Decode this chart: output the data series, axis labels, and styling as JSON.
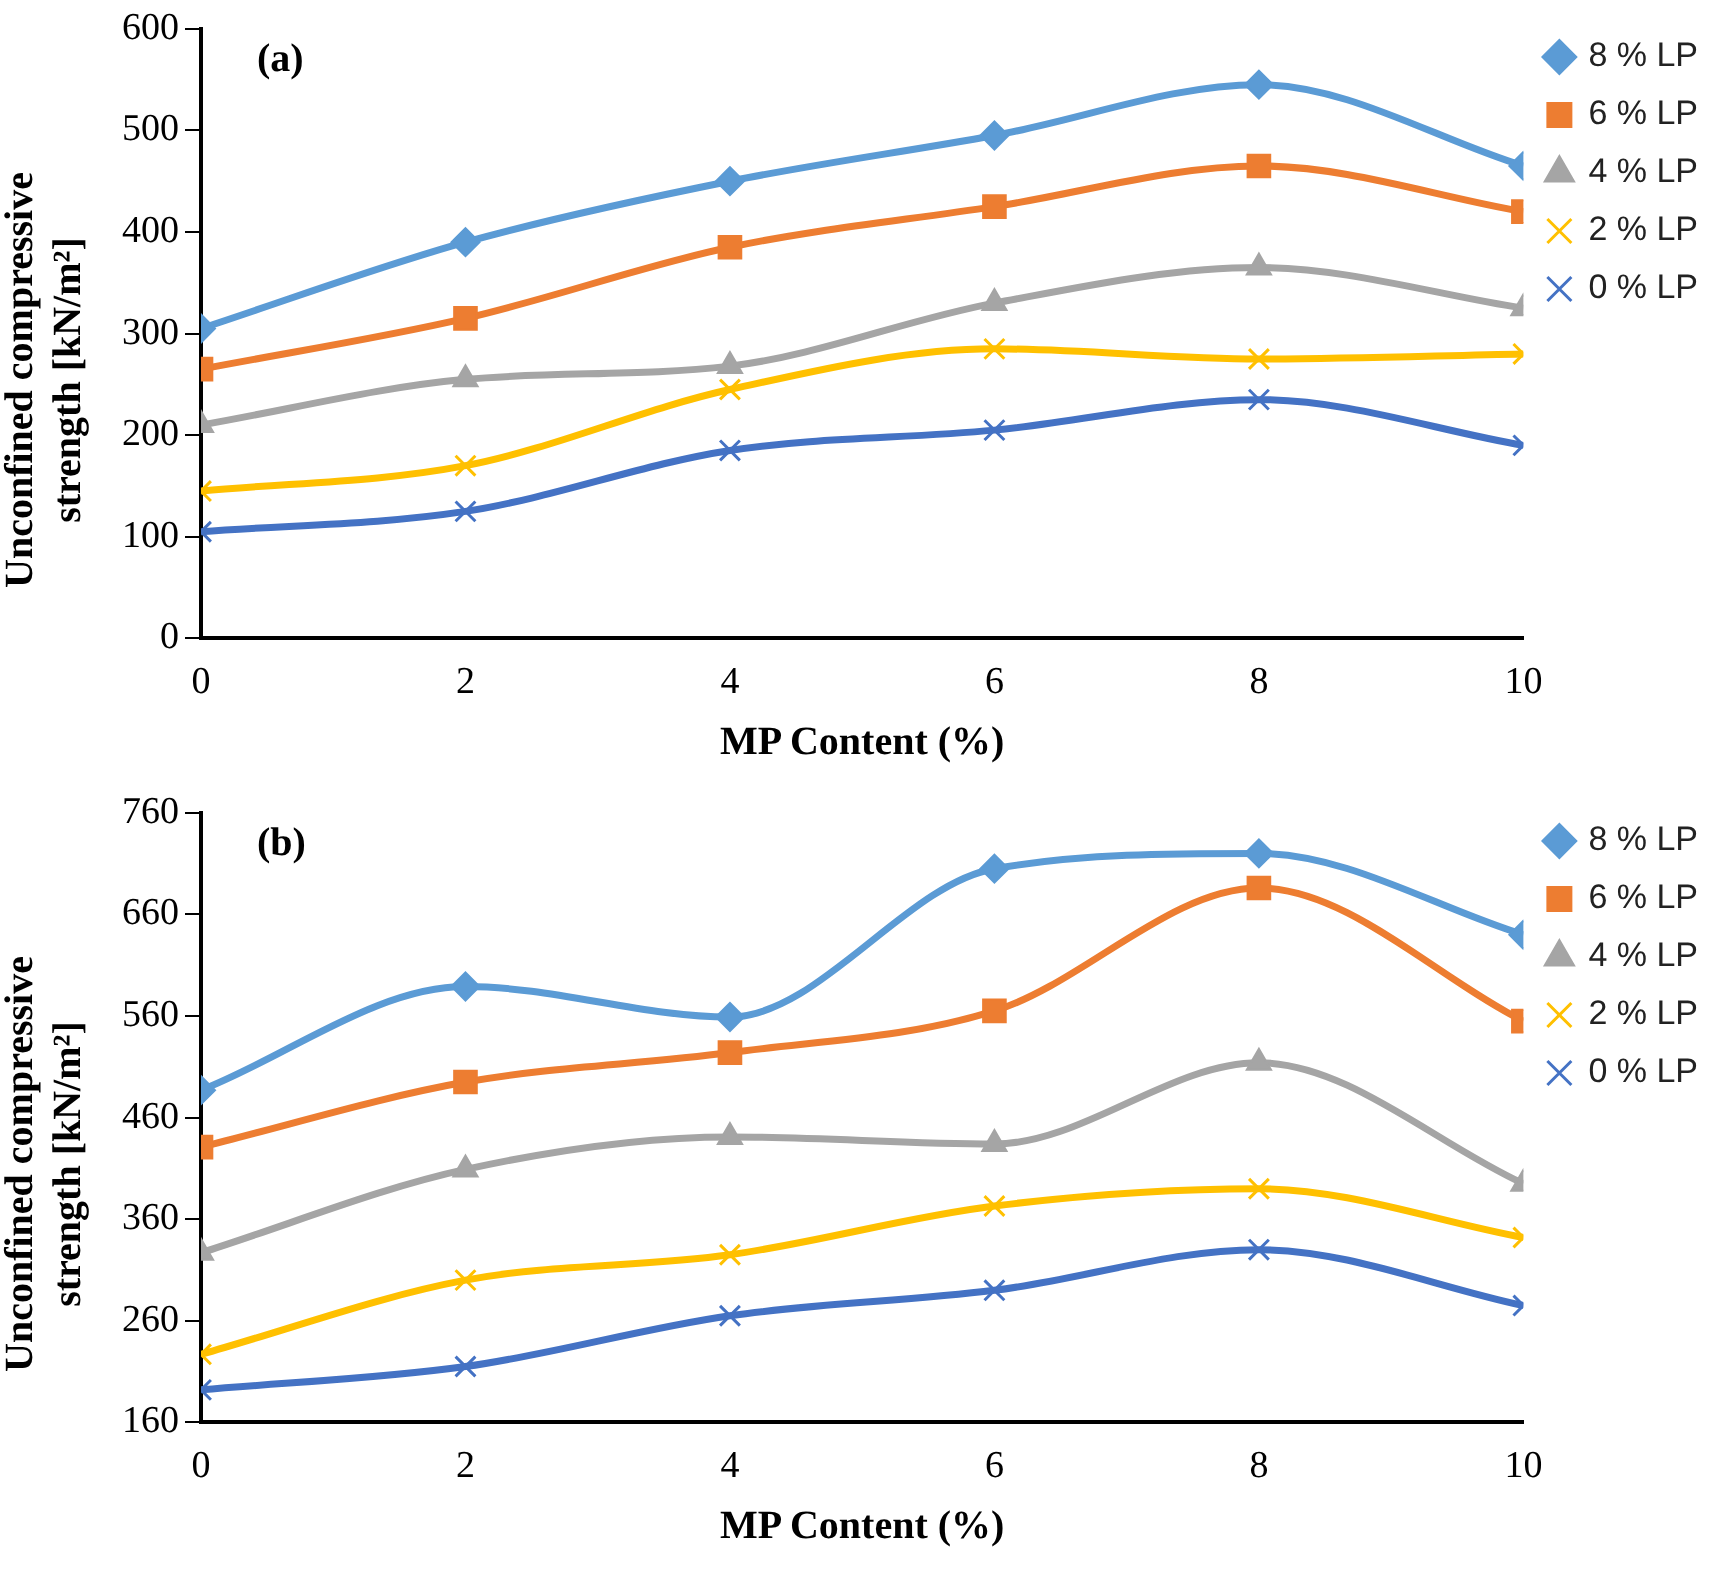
{
  "chart_data": [
    {
      "type": "line",
      "xlabel": "MP Content (%)",
      "ylabel": "Unconfined compressive strength [kN/m²]",
      "annotations": [
        "(a)"
      ],
      "x": [
        0,
        2,
        4,
        6,
        8,
        10
      ],
      "xlim": [
        0,
        10
      ],
      "xticks": [
        0,
        2,
        4,
        6,
        8,
        10
      ],
      "ylim": [
        0,
        600
      ],
      "yticks": [
        0,
        100,
        200,
        300,
        400,
        500,
        600
      ],
      "grid": false,
      "legend": "right",
      "series": [
        {
          "name": "8 % LP",
          "color": "#5b9bd5",
          "marker": "diamond",
          "values": [
            305,
            390,
            450,
            495,
            545,
            465
          ]
        },
        {
          "name": "6 % LP",
          "color": "#ed7d31",
          "marker": "square",
          "values": [
            265,
            315,
            385,
            425,
            465,
            420
          ]
        },
        {
          "name": "4 % LP",
          "color": "#a5a5a5",
          "marker": "triangle",
          "values": [
            210,
            255,
            268,
            330,
            365,
            325
          ]
        },
        {
          "name": "2 % LP",
          "color": "#ffc000",
          "marker": "cross",
          "values": [
            145,
            170,
            245,
            285,
            275,
            280
          ]
        },
        {
          "name": "0 % LP",
          "color": "#4472c4",
          "marker": "cross",
          "values": [
            105,
            125,
            185,
            205,
            235,
            190
          ]
        }
      ]
    },
    {
      "type": "line",
      "xlabel": "MP Content (%)",
      "ylabel": "Unconfined compressive strength [kN/m²]",
      "annotations": [
        "(b)"
      ],
      "x": [
        0,
        2,
        4,
        6,
        8,
        10
      ],
      "xlim": [
        0,
        10
      ],
      "xticks": [
        0,
        2,
        4,
        6,
        8,
        10
      ],
      "ylim": [
        160,
        760
      ],
      "yticks": [
        160,
        260,
        360,
        460,
        560,
        660,
        760
      ],
      "grid": false,
      "legend": "right",
      "series": [
        {
          "name": "8 % LP",
          "color": "#5b9bd5",
          "marker": "diamond",
          "values": [
            487,
            589,
            559,
            705,
            720,
            640
          ]
        },
        {
          "name": "6 % LP",
          "color": "#ed7d31",
          "marker": "square",
          "values": [
            431,
            495,
            524,
            565,
            686,
            555
          ]
        },
        {
          "name": "4 % LP",
          "color": "#a5a5a5",
          "marker": "triangle",
          "values": [
            327,
            409,
            441,
            434,
            514,
            395
          ]
        },
        {
          "name": "2 % LP",
          "color": "#ffc000",
          "marker": "cross",
          "values": [
            227,
            300,
            325,
            373,
            390,
            342
          ]
        },
        {
          "name": "0 % LP",
          "color": "#4472c4",
          "marker": "cross",
          "values": [
            192,
            215,
            265,
            290,
            330,
            275
          ]
        }
      ]
    }
  ]
}
